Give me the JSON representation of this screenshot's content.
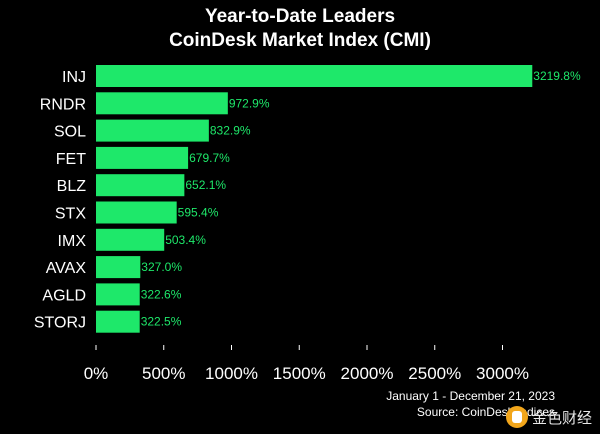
{
  "chart_data": {
    "type": "bar",
    "orientation": "horizontal",
    "title": [
      "Year-to-Date Leaders",
      "CoinDesk Market Index (CMI)"
    ],
    "categories": [
      "INJ",
      "RNDR",
      "SOL",
      "FET",
      "BLZ",
      "STX",
      "IMX",
      "AVAX",
      "AGLD",
      "STORJ"
    ],
    "values": [
      3219.8,
      972.9,
      832.9,
      679.7,
      652.1,
      595.4,
      503.4,
      327.0,
      322.6,
      322.5
    ],
    "value_labels": [
      "3219.8%",
      "972.9%",
      "832.9%",
      "679.7%",
      "652.1%",
      "595.4%",
      "503.4%",
      "327.0%",
      "322.6%",
      "322.5%"
    ],
    "xticks": [
      0,
      500,
      1000,
      1500,
      2000,
      2500,
      3000
    ],
    "xtick_labels": [
      "0%",
      "500%",
      "1000%",
      "1500%",
      "2000%",
      "2500%",
      "3000%"
    ],
    "xlim": [
      0,
      3300
    ],
    "grid": false,
    "bar_color": "#1ee86a",
    "label_color": "#1ee86a",
    "background": "#000000",
    "notes": [
      "January 1 - December 21, 2023",
      "Source: CoinDesk Indices"
    ]
  },
  "watermark": {
    "text": "金色财经",
    "icon": "jinse-logo-icon"
  }
}
